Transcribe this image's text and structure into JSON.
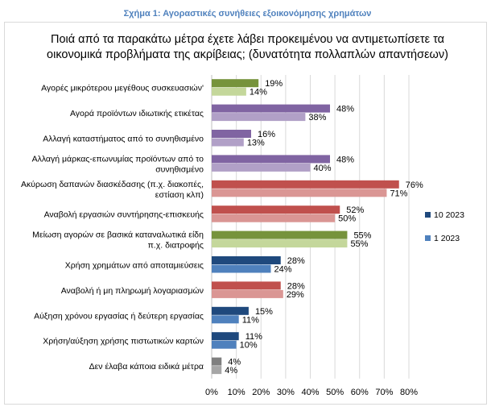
{
  "figure_title": "Σχήμα 1: Αγοραστικές συνήθειες εξοικονόμησης χρημάτων",
  "chart_data": {
    "type": "bar",
    "orientation": "horizontal",
    "title": "Ποιά από τα παρακάτω μέτρα έχετε λάβει προκειμένου να αντιμετωπίσετε τα οικονομικά προβλήματα της ακρίβειας; (δυνατότητα πολλαπλών απαντήσεων)",
    "categories": [
      [
        "Αγορές μικρότερου μεγέθους συσκευασιών'"
      ],
      [
        "Αγορά προϊόντων ιδιωτικής ετικέτας"
      ],
      [
        "Αλλαγή καταστήματος από το συνηθισμένο"
      ],
      [
        "Αλλαγή μάρκας-επωνυμίας προϊόντων από το",
        "συνηθισμένο"
      ],
      [
        "Ακύρωση δαπανών διασκέδασης (π.χ. διακοπές,",
        "εστίαση κλπ)"
      ],
      [
        "Αναβολή εργασιών συντήρησης-επισκευής"
      ],
      [
        "Μείωση αγορών σε βασικά καταναλωτικά είδη",
        "π.χ. διατροφής"
      ],
      [
        "Χρήση χρημάτων από αποταμιεύσεις"
      ],
      [
        "Αναβολή ή μη πληρωμή λογαριασμών"
      ],
      [
        "Αύξηση χρόνου εργασίας ή δεύτερη εργασίας"
      ],
      [
        "Χρήση/αύξηση χρήσης πιστωτικών καρτών"
      ],
      [
        "Δεν έλαβα κάποια ειδικά μέτρα"
      ]
    ],
    "series": [
      {
        "name": "10 2023",
        "values": [
          19,
          48,
          16,
          48,
          76,
          52,
          55,
          28,
          28,
          15,
          11,
          4
        ]
      },
      {
        "name": "1 2023",
        "values": [
          14,
          38,
          13,
          40,
          71,
          50,
          55,
          24,
          29,
          11,
          10,
          4
        ]
      }
    ],
    "bar_colors": [
      [
        "#76933C",
        "#C4D79B"
      ],
      [
        "#8064A2",
        "#B1A0C7"
      ],
      [
        "#8064A2",
        "#B1A0C7"
      ],
      [
        "#8064A2",
        "#B1A0C7"
      ],
      [
        "#C0504D",
        "#DA9694"
      ],
      [
        "#C0504D",
        "#DA9694"
      ],
      [
        "#76933C",
        "#C4D79B"
      ],
      [
        "#1F497D",
        "#4F81BD"
      ],
      [
        "#C0504D",
        "#DA9694"
      ],
      [
        "#1F497D",
        "#4F81BD"
      ],
      [
        "#1F497D",
        "#4F81BD"
      ],
      [
        "#7F7F7F",
        "#A6A6A6"
      ]
    ],
    "legend_colors": [
      "#1F497D",
      "#4F81BD"
    ],
    "xlim": [
      0,
      80
    ],
    "xticks": [
      "0%",
      "10%",
      "20%",
      "30%",
      "40%",
      "50%",
      "60%",
      "70%",
      "80%"
    ],
    "grid": true,
    "legend_position": "right"
  }
}
